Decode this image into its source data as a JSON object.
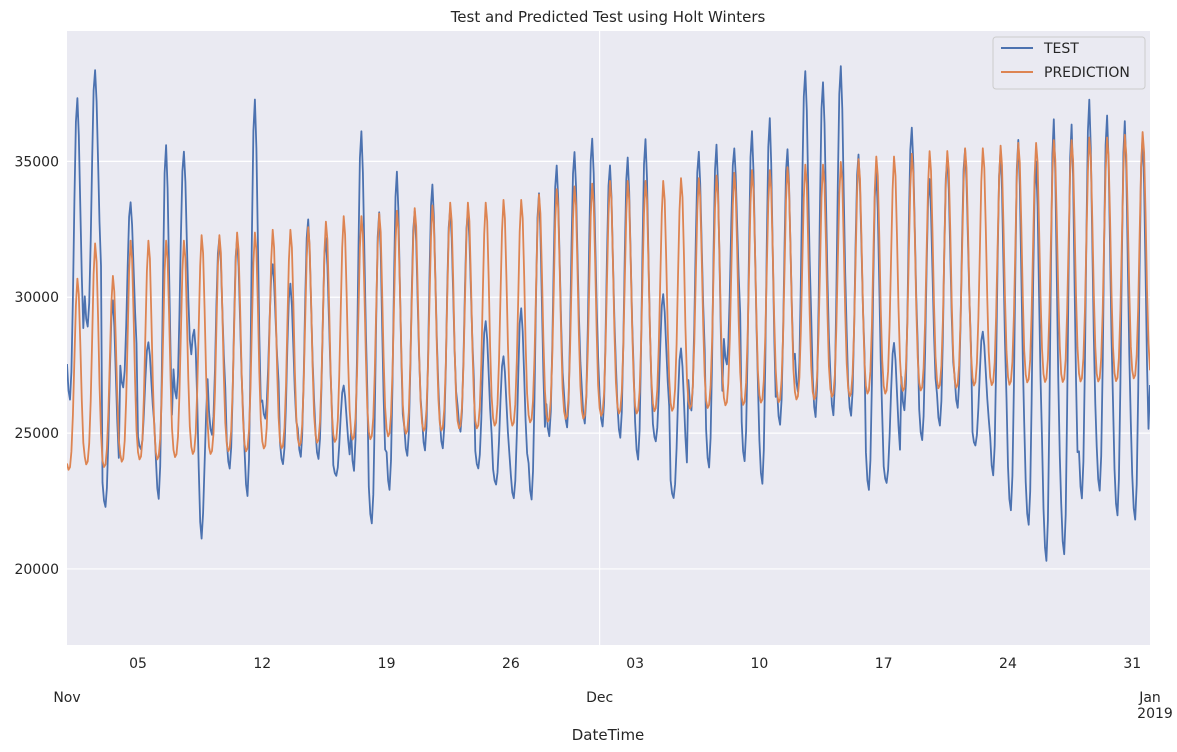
{
  "chart_data": {
    "type": "line",
    "title": "Test and Predicted Test using Holt Winters",
    "xlabel": "DateTime",
    "ylabel": "",
    "x_start": "2018-11-01",
    "x_end": "2019-01-01",
    "ylim": [
      17200,
      39800
    ],
    "yticks": [
      20000,
      25000,
      30000,
      35000
    ],
    "xticks_minor": [
      {
        "date": "2018-11-05",
        "label": "05"
      },
      {
        "date": "2018-11-12",
        "label": "12"
      },
      {
        "date": "2018-11-19",
        "label": "19"
      },
      {
        "date": "2018-11-26",
        "label": "26"
      },
      {
        "date": "2018-12-03",
        "label": "03"
      },
      {
        "date": "2018-12-10",
        "label": "10"
      },
      {
        "date": "2018-12-17",
        "label": "17"
      },
      {
        "date": "2018-12-24",
        "label": "24"
      },
      {
        "date": "2018-12-31",
        "label": "31"
      }
    ],
    "xticks_major": [
      {
        "date": "2018-11-01",
        "label": "Nov",
        "sublabel": ""
      },
      {
        "date": "2018-12-01",
        "label": "Dec",
        "sublabel": ""
      },
      {
        "date": "2019-01-01",
        "label": "Jan",
        "sublabel": "2019"
      }
    ],
    "grid": true,
    "legend_position": "top-right",
    "series": [
      {
        "name": "TEST",
        "color": "#4c72b0",
        "points_per_day": 1,
        "daily_peak": [
          37500,
          38500,
          30000,
          33600,
          28400,
          35800,
          35500,
          21000,
          32300,
          32300,
          37500,
          31300,
          30600,
          33000,
          32300,
          26800,
          36300,
          33300,
          34800,
          33300,
          34300,
          33400,
          33300,
          29200,
          27900,
          29700,
          34000,
          35000,
          35500,
          36000,
          35000,
          35300,
          36000,
          30200,
          28200,
          35500,
          35800,
          35600,
          36300,
          36800,
          35600,
          38500,
          38100,
          38700,
          35400,
          34800,
          28400,
          36400,
          34500,
          35300,
          35600,
          28800,
          35600,
          36000,
          35200,
          36800,
          36600,
          37500,
          36900,
          36700,
          36100,
          35000
        ],
        "daily_trough": [
          24800,
          27700,
          21300,
          25800,
          23900,
          20900,
          25100,
          29800,
          24000,
          22600,
          20800,
          24800,
          23000,
          23000,
          23000,
          23000,
          22000,
          20200,
          21400,
          23000,
          23100,
          23300,
          24000,
          23000,
          22500,
          21700,
          21100,
          23600,
          23900,
          24000,
          24000,
          23500,
          22500,
          24000,
          21900,
          24600,
          22200,
          26500,
          22400,
          21400,
          24000,
          25000,
          24000,
          24000,
          24400,
          21400,
          22500,
          24500,
          23500,
          24000,
          24700,
          24000,
          21900,
          20400,
          19900,
          18200,
          18500,
          20700,
          21100,
          20100,
          20000,
          24500
        ]
      },
      {
        "name": "PREDICTION",
        "color": "#dd8452",
        "points_per_day": 1,
        "daily_peak": [
          30700,
          32000,
          30800,
          32100,
          32100,
          32100,
          32100,
          32300,
          32300,
          32400,
          32400,
          32500,
          32500,
          32600,
          32800,
          33000,
          33000,
          33100,
          33200,
          33300,
          33400,
          33500,
          33500,
          33500,
          33600,
          33600,
          33800,
          34000,
          34100,
          34200,
          34300,
          34300,
          34300,
          34300,
          34400,
          34400,
          34500,
          34600,
          34700,
          34700,
          34800,
          34900,
          34900,
          35000,
          35100,
          35200,
          35200,
          35300,
          35400,
          35400,
          35500,
          35500,
          35600,
          35700,
          35700,
          35800,
          35800,
          35900,
          35900,
          36000,
          36100,
          36100
        ],
        "daily_trough": [
          22400,
          22400,
          22500,
          22500,
          22600,
          22600,
          22700,
          22800,
          22800,
          22900,
          22900,
          23000,
          23000,
          23100,
          23200,
          23200,
          23300,
          23300,
          23400,
          23500,
          23600,
          23600,
          23700,
          23700,
          23800,
          23800,
          23900,
          23900,
          24000,
          24000,
          24100,
          24200,
          24200,
          24300,
          24300,
          24400,
          24400,
          24500,
          24500,
          24600,
          24600,
          24700,
          24700,
          24800,
          24800,
          24900,
          24900,
          25000,
          25000,
          25100,
          25100,
          25200,
          25200,
          25200,
          25300,
          25300,
          25300,
          25300,
          25300,
          25300,
          25400,
          25400
        ]
      }
    ]
  }
}
